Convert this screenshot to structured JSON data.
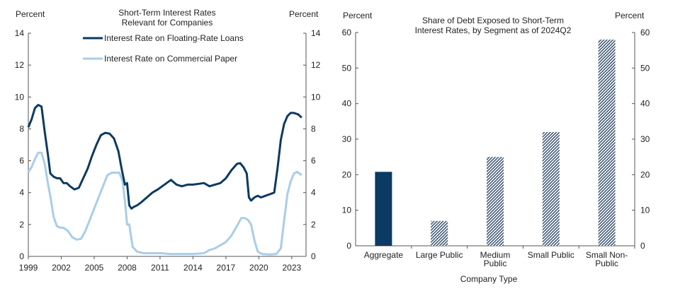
{
  "colors": {
    "floating": "#0b3a62",
    "paper": "#a9cde8",
    "aggregate_bar": "#0b3a62",
    "hatch_dark": "#3d5670",
    "hatch_light": "#ffffff",
    "axis": "#555555",
    "text": "#222222"
  },
  "chart_data": [
    {
      "type": "line",
      "title": "Short-Term Interest Rates\nRelevant for Companies",
      "ylabel_left": "Percent",
      "ylabel_right": "Percent",
      "xlim": [
        1999,
        2024.3
      ],
      "ylim": [
        0,
        14
      ],
      "yticks": [
        0,
        2,
        4,
        6,
        8,
        10,
        12,
        14
      ],
      "xticks": [
        1999,
        2002,
        2005,
        2008,
        2011,
        2014,
        2017,
        2020,
        2023
      ],
      "legend_position": "top-right",
      "series": [
        {
          "name": "Interest Rate on Floating-Rate Loans",
          "color_key": "floating",
          "x": [
            1999.0,
            1999.3,
            1999.6,
            1999.9,
            2000.2,
            2000.5,
            2000.8,
            2001.0,
            2001.3,
            2001.6,
            2001.9,
            2002.2,
            2002.5,
            2002.8,
            2003.2,
            2003.6,
            2004.0,
            2004.4,
            2004.8,
            2005.2,
            2005.6,
            2006.0,
            2006.4,
            2006.8,
            2007.2,
            2007.5,
            2007.8,
            2008.0,
            2008.2,
            2008.4,
            2008.6,
            2008.9,
            2009.3,
            2009.8,
            2010.3,
            2010.8,
            2011.2,
            2011.6,
            2012.0,
            2012.5,
            2013.0,
            2013.5,
            2014.0,
            2014.5,
            2015.0,
            2015.5,
            2016.0,
            2016.5,
            2017.0,
            2017.5,
            2018.0,
            2018.3,
            2018.6,
            2018.9,
            2019.1,
            2019.3,
            2019.6,
            2019.9,
            2020.2,
            2020.6,
            2021.0,
            2021.4,
            2021.7,
            2022.0,
            2022.3,
            2022.6,
            2022.9,
            2023.2,
            2023.6,
            2023.9
          ],
          "y": [
            8.1,
            8.6,
            9.3,
            9.5,
            9.4,
            7.8,
            6.3,
            5.2,
            5.0,
            4.9,
            4.9,
            4.6,
            4.6,
            4.4,
            4.2,
            4.3,
            4.9,
            5.5,
            6.3,
            7.0,
            7.6,
            7.75,
            7.7,
            7.4,
            6.6,
            5.5,
            4.5,
            4.6,
            3.2,
            3.0,
            3.1,
            3.2,
            3.4,
            3.7,
            4.0,
            4.2,
            4.4,
            4.6,
            4.8,
            4.5,
            4.4,
            4.5,
            4.5,
            4.55,
            4.6,
            4.4,
            4.5,
            4.6,
            4.9,
            5.4,
            5.8,
            5.85,
            5.6,
            5.2,
            3.7,
            3.5,
            3.7,
            3.8,
            3.7,
            3.8,
            3.9,
            4.0,
            5.5,
            7.3,
            8.3,
            8.8,
            9.0,
            9.0,
            8.9,
            8.7
          ]
        },
        {
          "name": "Interest Rate on Commercial Paper",
          "color_key": "paper",
          "x": [
            1999.0,
            1999.3,
            1999.6,
            1999.9,
            2000.2,
            2000.5,
            2000.8,
            2001.0,
            2001.3,
            2001.6,
            2001.9,
            2002.2,
            2002.6,
            2003.0,
            2003.4,
            2003.8,
            2004.2,
            2004.6,
            2005.0,
            2005.4,
            2005.8,
            2006.2,
            2006.6,
            2007.0,
            2007.3,
            2007.6,
            2007.8,
            2008.0,
            2008.2,
            2008.5,
            2008.9,
            2009.5,
            2010.0,
            2011.0,
            2012.0,
            2013.0,
            2014.0,
            2015.0,
            2015.5,
            2016.0,
            2016.5,
            2017.0,
            2017.5,
            2018.0,
            2018.4,
            2018.7,
            2019.0,
            2019.3,
            2019.6,
            2019.9,
            2020.3,
            2021.0,
            2021.6,
            2022.0,
            2022.3,
            2022.6,
            2022.9,
            2023.2,
            2023.5,
            2023.9
          ],
          "y": [
            5.3,
            5.6,
            6.1,
            6.5,
            6.5,
            5.8,
            4.5,
            3.8,
            2.5,
            1.9,
            1.8,
            1.8,
            1.6,
            1.2,
            1.05,
            1.1,
            1.6,
            2.3,
            3.0,
            3.7,
            4.4,
            5.1,
            5.25,
            5.25,
            5.25,
            4.7,
            3.5,
            2.0,
            2.0,
            0.6,
            0.3,
            0.2,
            0.2,
            0.2,
            0.15,
            0.15,
            0.15,
            0.2,
            0.4,
            0.5,
            0.7,
            0.9,
            1.3,
            1.9,
            2.4,
            2.4,
            2.3,
            2.0,
            1.0,
            0.3,
            0.15,
            0.12,
            0.15,
            0.5,
            2.2,
            3.9,
            4.7,
            5.2,
            5.3,
            5.1
          ]
        }
      ]
    },
    {
      "type": "bar",
      "title": "Share of Debt Exposed to Short-Term\nInterest Rates, by Segment as of 2024Q2",
      "xlabel": "Company Type",
      "ylabel_left": "Percent",
      "ylabel_right": "Percent",
      "ylim": [
        0,
        60
      ],
      "yticks": [
        0,
        10,
        20,
        30,
        40,
        50,
        60
      ],
      "categories": [
        "Aggregate",
        "Large Public",
        "Medium\nPublic",
        "Small Public",
        "Small Non-\nPublic"
      ],
      "values": [
        20.8,
        7.0,
        25.0,
        32.0,
        58.0
      ],
      "bar_styles": [
        "solid",
        "hatched",
        "hatched",
        "hatched",
        "hatched"
      ]
    }
  ]
}
